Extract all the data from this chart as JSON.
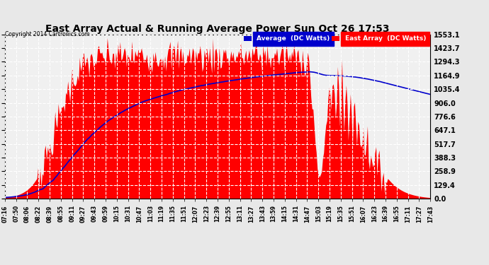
{
  "title": "East Array Actual & Running Average Power Sun Oct 26 17:53",
  "copyright": "Copyright 2014 Cartronics.com",
  "ylabel_values": [
    0.0,
    129.4,
    258.9,
    388.3,
    517.7,
    647.1,
    776.6,
    906.0,
    1035.4,
    1164.9,
    1294.3,
    1423.7,
    1553.1
  ],
  "ymax": 1553.1,
  "ymin": 0.0,
  "x_tick_labels": [
    "07:16",
    "07:50",
    "08:06",
    "08:22",
    "08:39",
    "08:55",
    "09:11",
    "09:27",
    "09:43",
    "09:59",
    "10:15",
    "10:31",
    "10:47",
    "11:03",
    "11:19",
    "11:35",
    "11:51",
    "12:07",
    "12:23",
    "12:39",
    "12:55",
    "13:11",
    "13:27",
    "13:43",
    "13:59",
    "14:15",
    "14:31",
    "14:47",
    "15:03",
    "15:19",
    "15:35",
    "15:51",
    "16:07",
    "16:23",
    "16:39",
    "16:55",
    "17:11",
    "17:27",
    "17:43"
  ],
  "legend_avg_label": "Average  (DC Watts)",
  "legend_east_label": "East Array  (DC Watts)",
  "bg_color": "#e8e8e8",
  "plot_bg_color": "#f0f0f0",
  "title_color": "#000000",
  "grid_color": "#ffffff",
  "east_array_color": "#ff0000",
  "avg_line_color": "#0000cc",
  "legend_avg_bg": "#0000cc",
  "legend_east_bg": "#ff0000"
}
